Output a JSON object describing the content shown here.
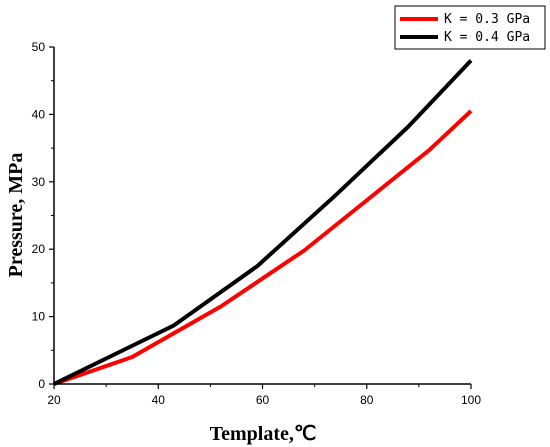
{
  "chart_data": {
    "type": "line",
    "title": "",
    "xlabel": "Template,℃",
    "ylabel": "Pressure, MPa",
    "xlim": [
      20,
      100
    ],
    "ylim": [
      0,
      50
    ],
    "x_ticks": [
      20,
      40,
      60,
      80,
      100
    ],
    "y_ticks": [
      0,
      10,
      20,
      30,
      40,
      50
    ],
    "grid": false,
    "legend_position": "top-right",
    "series": [
      {
        "name": "K = 0.3 GPa",
        "color": "#ff0000",
        "points": [
          [
            20,
            0
          ],
          [
            35,
            4
          ],
          [
            52,
            11.5
          ],
          [
            68,
            19.8
          ],
          [
            82,
            28.5
          ],
          [
            92,
            34.7
          ],
          [
            100,
            40.5
          ]
        ]
      },
      {
        "name": "K = 0.4 GPa",
        "color": "#000000",
        "points": [
          [
            20,
            0
          ],
          [
            43,
            8.7
          ],
          [
            59,
            17.5
          ],
          [
            74,
            28
          ],
          [
            88,
            38.2
          ],
          [
            100,
            48
          ]
        ]
      }
    ]
  }
}
